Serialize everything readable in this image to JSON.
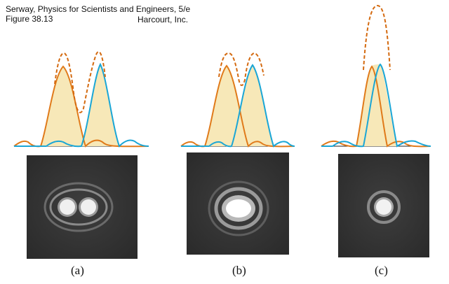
{
  "header": {
    "book": "Serway, Physics for Scientists and Engineers, 5/e",
    "figure": "Figure 38.13",
    "publisher": "Harcourt, Inc."
  },
  "panels": [
    {
      "label": "(a)"
    },
    {
      "label": "(b)"
    },
    {
      "label": "(c)"
    }
  ],
  "colors": {
    "source1": "#e07a1a",
    "source2": "#1aa6d6",
    "sum": "#d46a10",
    "fill": "#f7e8b8"
  }
}
